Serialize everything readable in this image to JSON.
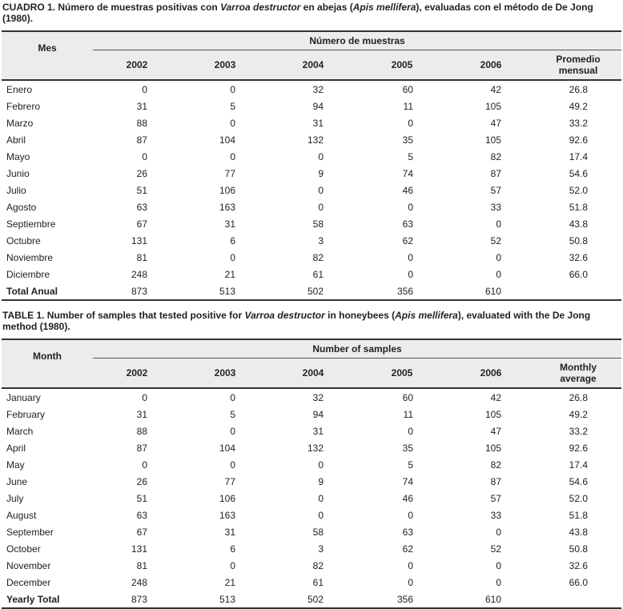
{
  "tables": [
    {
      "caption": {
        "label": "CUADRO 1.",
        "parts": [
          " Número de muestras positivas con ",
          "Varroa destructor",
          " en abejas (",
          "Apis mellifera",
          "), evaluadas con el método de De Jong (1980)."
        ],
        "italic_parts": [
          1,
          3
        ]
      },
      "header": {
        "stub": "Mes",
        "group": "Número de muestras",
        "columns": [
          "2002",
          "2003",
          "2004",
          "2005",
          "2006",
          "Promedio mensual"
        ]
      },
      "rows": [
        [
          "Enero",
          "0",
          "0",
          "32",
          "60",
          "42",
          "26.8"
        ],
        [
          "Febrero",
          "31",
          "5",
          "94",
          "11",
          "105",
          "49.2"
        ],
        [
          "Marzo",
          "88",
          "0",
          "31",
          "0",
          "47",
          "33.2"
        ],
        [
          "Abril",
          "87",
          "104",
          "132",
          "35",
          "105",
          "92.6"
        ],
        [
          "Mayo",
          "0",
          "0",
          "0",
          "5",
          "82",
          "17.4"
        ],
        [
          "Junio",
          "26",
          "77",
          "9",
          "74",
          "87",
          "54.6"
        ],
        [
          "Julio",
          "51",
          "106",
          "0",
          "46",
          "57",
          "52.0"
        ],
        [
          "Agosto",
          "63",
          "163",
          "0",
          "0",
          "33",
          "51.8"
        ],
        [
          "Septiembre",
          "67",
          "31",
          "58",
          "63",
          "0",
          "43.8"
        ],
        [
          "Octubre",
          "131",
          "6",
          "3",
          "62",
          "52",
          "50.8"
        ],
        [
          "Noviembre",
          "81",
          "0",
          "82",
          "0",
          "0",
          "32.6"
        ],
        [
          "Diciembre",
          "248",
          "21",
          "61",
          "0",
          "0",
          "66.0"
        ],
        [
          "Total Anual",
          "873",
          "513",
          "502",
          "356",
          "610"
        ]
      ]
    },
    {
      "caption": {
        "label": "TABLE 1.",
        "parts": [
          " Number of samples that tested positive for ",
          "Varroa destructor",
          " in honeybees (",
          "Apis mellifera",
          "), evaluated with the De Jong method (1980)."
        ],
        "italic_parts": [
          1,
          3
        ]
      },
      "header": {
        "stub": "Month",
        "group": "Number of samples",
        "columns": [
          "2002",
          "2003",
          "2004",
          "2005",
          "2006",
          "Monthly average"
        ]
      },
      "rows": [
        [
          "January",
          "0",
          "0",
          "32",
          "60",
          "42",
          "26.8"
        ],
        [
          "February",
          "31",
          "5",
          "94",
          "11",
          "105",
          "49.2"
        ],
        [
          "March",
          "88",
          "0",
          "31",
          "0",
          "47",
          "33.2"
        ],
        [
          "April",
          "87",
          "104",
          "132",
          "35",
          "105",
          "92.6"
        ],
        [
          "May",
          "0",
          "0",
          "0",
          "5",
          "82",
          "17.4"
        ],
        [
          "June",
          "26",
          "77",
          "9",
          "74",
          "87",
          "54.6"
        ],
        [
          "July",
          "51",
          "106",
          "0",
          "46",
          "57",
          "52.0"
        ],
        [
          "August",
          "63",
          "163",
          "0",
          "0",
          "33",
          "51.8"
        ],
        [
          "September",
          "67",
          "31",
          "58",
          "63",
          "0",
          "43.8"
        ],
        [
          "October",
          "131",
          "6",
          "3",
          "62",
          "52",
          "50.8"
        ],
        [
          "November",
          "81",
          "0",
          "82",
          "0",
          "0",
          "32.6"
        ],
        [
          "December",
          "248",
          "21",
          "61",
          "0",
          "0",
          "66.0"
        ],
        [
          "Yearly Total",
          "873",
          "513",
          "502",
          "356",
          "610"
        ]
      ]
    }
  ]
}
